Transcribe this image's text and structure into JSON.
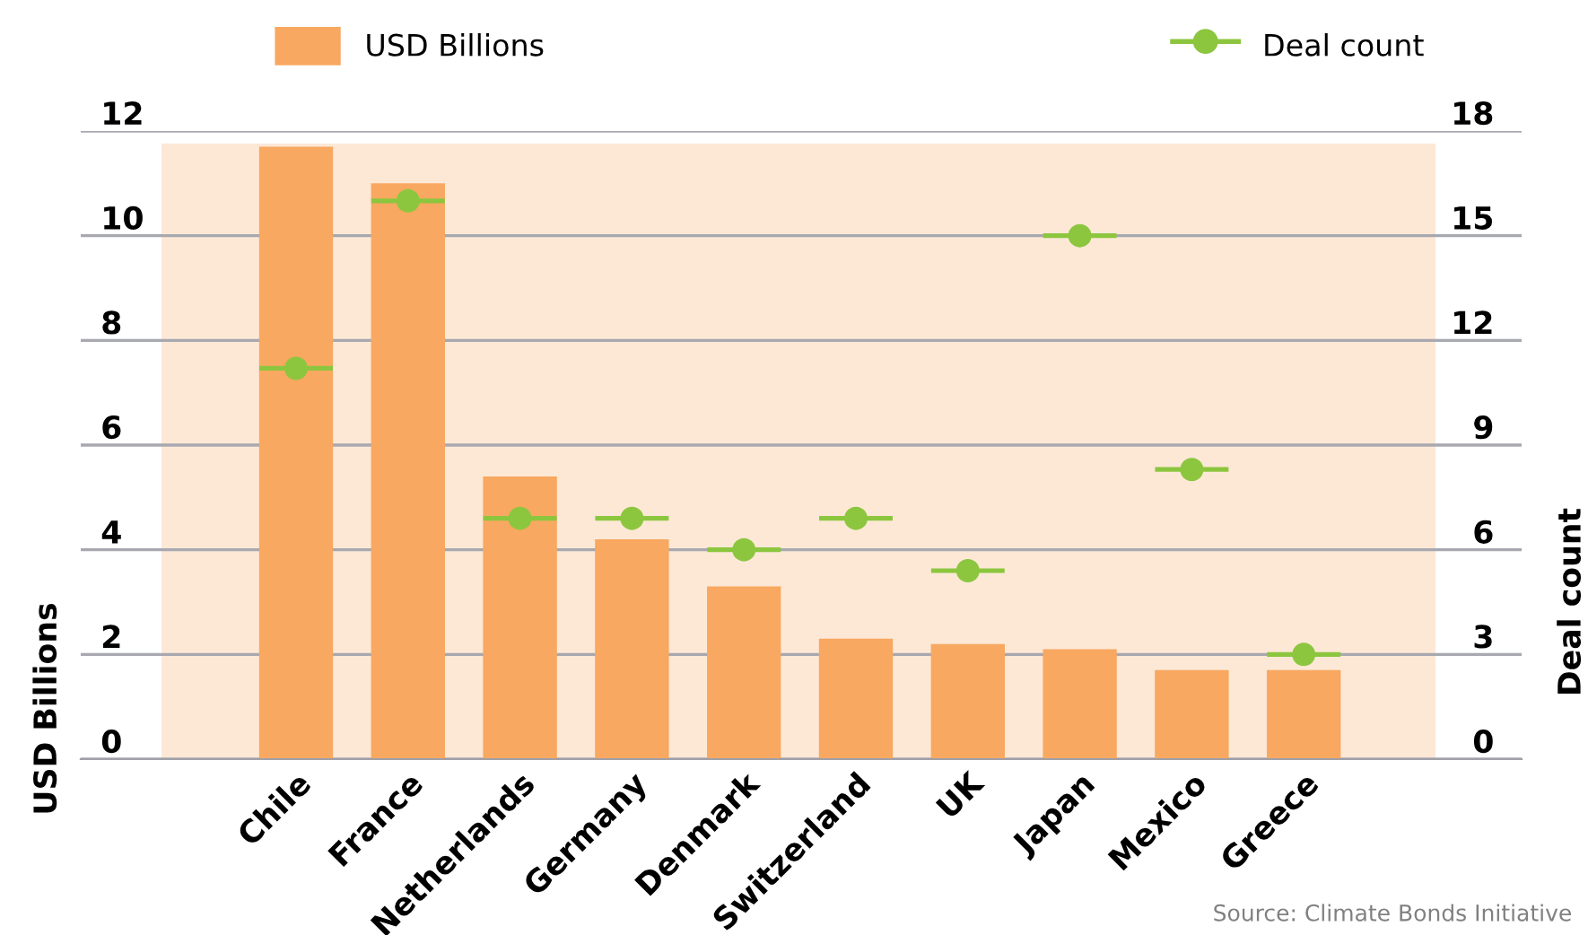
{
  "chart_data": {
    "type": "bar",
    "categories": [
      "Chile",
      "France",
      "Netherlands",
      "Germany",
      "Denmark",
      "Switzerland",
      "UK",
      "Japan",
      "Mexico",
      "Greece"
    ],
    "series": [
      {
        "name": "USD Billions",
        "color": "#f8a860",
        "values": [
          11.7,
          11.0,
          5.4,
          4.2,
          3.3,
          2.3,
          2.2,
          2.1,
          1.7,
          1.7
        ]
      },
      {
        "name": "Deal count",
        "type": "scatter",
        "axis": "y2",
        "color": "#8cc63f",
        "values": [
          11.2,
          16,
          6.9,
          6.9,
          6,
          6.9,
          5.4,
          15,
          8.3,
          3
        ]
      }
    ],
    "ylabel": "USD Billions",
    "y2label": "Deal count",
    "ylim": [
      0,
      12
    ],
    "yticks": [
      0,
      2,
      4,
      6,
      8,
      10,
      12
    ],
    "y2lim": [
      0,
      18
    ],
    "y2ticks": [
      0,
      3,
      6,
      9,
      12,
      15,
      18
    ],
    "grid": "y",
    "legend": "top",
    "marker": "circle",
    "annotations": [
      "Source: Climate Bonds Initiative"
    ]
  }
}
